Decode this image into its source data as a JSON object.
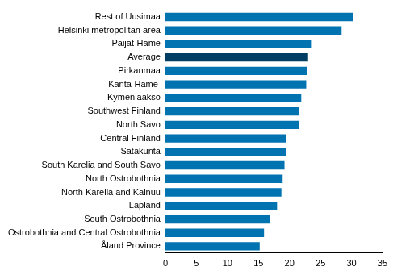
{
  "chart_data": {
    "type": "bar",
    "orientation": "horizontal",
    "categories": [
      "Rest of Uusimaa",
      "Helsinki metropolitan area",
      "Päijät-Häme",
      "Average",
      "Pirkanmaa",
      "Kanta-Häme ",
      "Kymenlaakso",
      "Southwest Finland",
      "North Savo",
      "Central Finland",
      "Satakunta",
      "South Karelia and South Savo",
      "North Ostrobothnia",
      "North Karelia and Kainuu",
      "Lapland",
      "South Ostrobothnia",
      "Ostrobothnia and Central Ostrobothnia",
      "Åland Province"
    ],
    "values": [
      30.2,
      28.4,
      23.6,
      23.0,
      22.8,
      22.7,
      21.9,
      21.5,
      21.5,
      19.5,
      19.4,
      19.2,
      18.9,
      18.7,
      18.0,
      16.9,
      15.9,
      15.2
    ],
    "colors": [
      "#0073b0",
      "#0073b0",
      "#0073b0",
      "#003f63",
      "#0073b0",
      "#0073b0",
      "#0073b0",
      "#0073b0",
      "#0073b0",
      "#0073b0",
      "#0073b0",
      "#0073b0",
      "#0073b0",
      "#0073b0",
      "#0073b0",
      "#0073b0",
      "#0073b0",
      "#0073b0"
    ],
    "xlim": [
      0,
      35
    ],
    "xticks": [
      0,
      5,
      10,
      15,
      20,
      25,
      30,
      35
    ],
    "grid": false
  }
}
